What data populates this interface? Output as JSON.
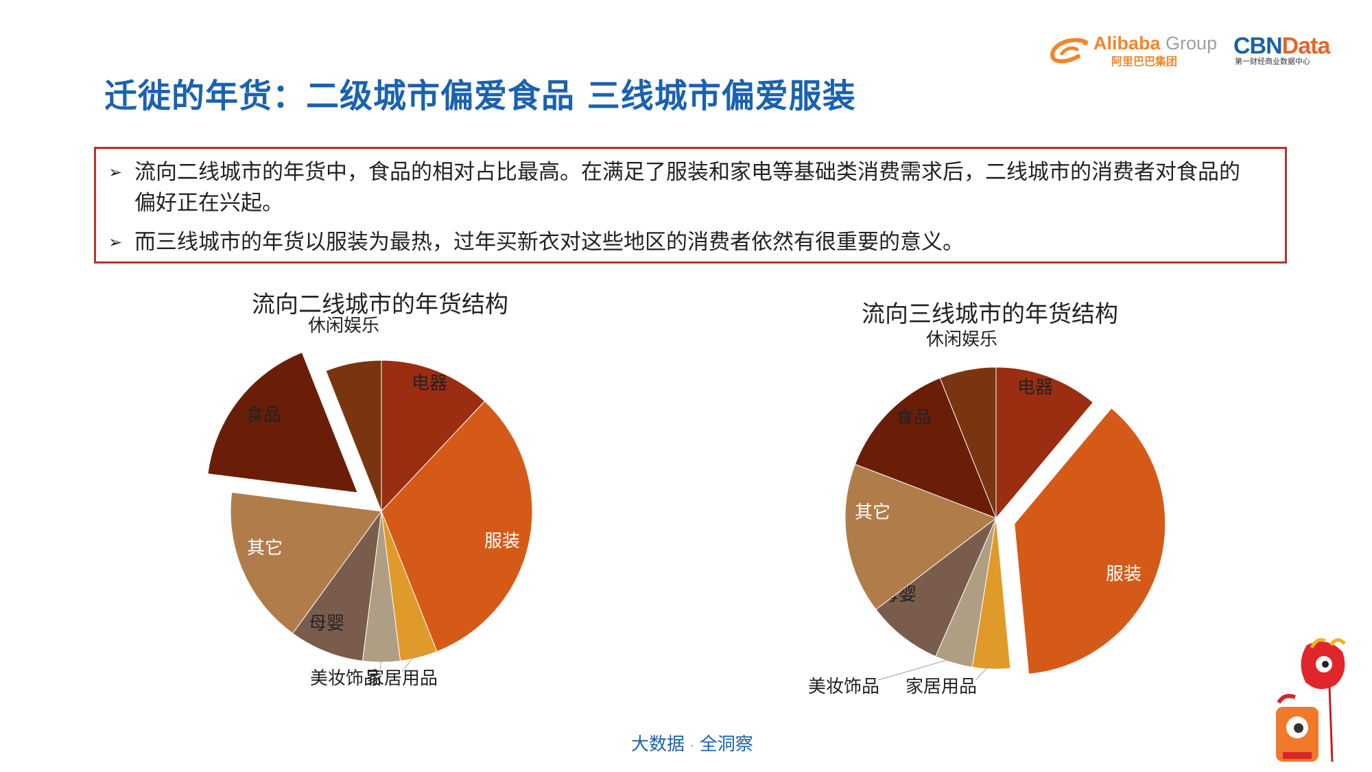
{
  "header": {
    "title": "迁徙的年货：二级城市偏爱食品 三线城市偏爱服装",
    "logo_alibaba": {
      "name": "Alibaba",
      "group": "Group",
      "sub": "阿里巴巴集团"
    },
    "logo_cbn": {
      "name_a": "CBN",
      "name_b": "Data",
      "sub": "第一财经商业数据中心"
    }
  },
  "summary": {
    "bullet_symbol": "➢",
    "bullets": [
      "流向二线城市的年货中，食品的相对占比最高。在满足了服装和家电等基础类消费需求后，二线城市的消费者对食品的偏好正在兴起。",
      "而三线城市的年货以服装为最热，过年买新衣对这些地区的消费者依然有很重要的意义。"
    ]
  },
  "footer": {
    "left": "大数据",
    "dot": "·",
    "right": "全洞察"
  },
  "colors": {
    "title": "#1a62b0",
    "box_border": "#b8322a",
    "电器": "#9b2e10",
    "服装": "#d55a18",
    "家居用品": "#e09a2a",
    "美妆饰品": "#b09e84",
    "母婴": "#7a5c4c",
    "其它": "#b07d4a",
    "食品": "#6a1e08",
    "休闲娱乐": "#7a3510"
  },
  "chart_data": [
    {
      "type": "pie",
      "title": "流向二线城市的年货结构",
      "exploded": "食品",
      "slices": [
        {
          "label": "电器",
          "value": 12
        },
        {
          "label": "服装",
          "value": 32
        },
        {
          "label": "家居用品",
          "value": 4
        },
        {
          "label": "美妆饰品",
          "value": 4
        },
        {
          "label": "母婴",
          "value": 8
        },
        {
          "label": "其它",
          "value": 17
        },
        {
          "label": "食品",
          "value": 17
        },
        {
          "label": "休闲娱乐",
          "value": 6
        }
      ]
    },
    {
      "type": "pie",
      "title": "流向三线城市的年货结构",
      "exploded": "服装",
      "slices": [
        {
          "label": "电器",
          "value": 11
        },
        {
          "label": "服装",
          "value": 37
        },
        {
          "label": "家居用品",
          "value": 4
        },
        {
          "label": "美妆饰品",
          "value": 4
        },
        {
          "label": "母婴",
          "value": 8
        },
        {
          "label": "其它",
          "value": 16
        },
        {
          "label": "食品",
          "value": 13
        },
        {
          "label": "休闲娱乐",
          "value": 6
        }
      ]
    }
  ]
}
